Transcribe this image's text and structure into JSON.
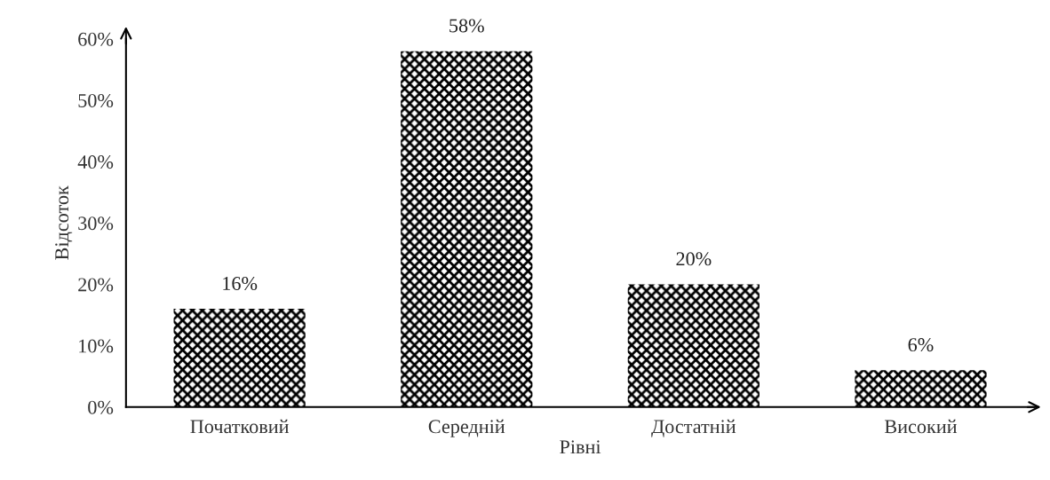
{
  "chart_data": {
    "type": "bar",
    "xlabel": "Рівні",
    "ylabel": "Відсоток",
    "categories": [
      "Початковий",
      "Середній",
      "Достатній",
      "Високий"
    ],
    "values": [
      16,
      58,
      20,
      6
    ],
    "color": "#000000",
    "value_labels": [
      "16%",
      "58%",
      "20%",
      "6%"
    ],
    "ylim": [
      0,
      60
    ],
    "yticks": [
      {
        "value": 0,
        "label": "0%"
      },
      {
        "value": 10,
        "label": "10%"
      },
      {
        "value": 20,
        "label": "20%"
      },
      {
        "value": 30,
        "label": "30%"
      },
      {
        "value": 40,
        "label": "40%"
      },
      {
        "value": 50,
        "label": "50%"
      },
      {
        "value": 60,
        "label": "60%"
      }
    ],
    "grid": false
  }
}
